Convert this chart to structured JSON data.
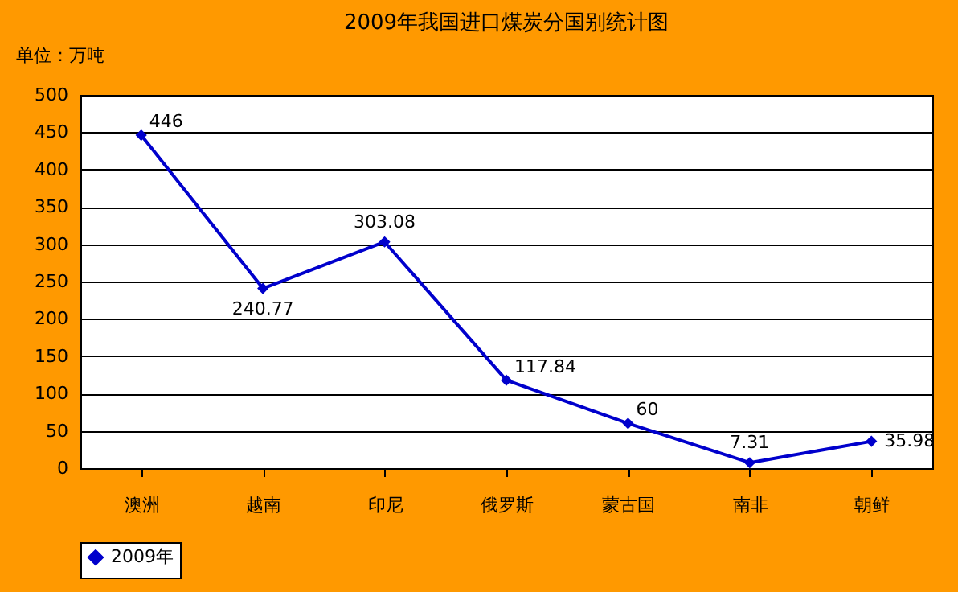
{
  "chart_data": {
    "type": "line",
    "title": "2009年我国进口煤炭分国别统计图",
    "annotations": [
      "单位：万吨"
    ],
    "categories": [
      "澳洲",
      "越南",
      "印尼",
      "俄罗斯",
      "蒙古国",
      "南非",
      "朝鲜"
    ],
    "series": [
      {
        "name": "2009年",
        "color": "#0000cc",
        "values": [
          446,
          240.77,
          303.08,
          117.84,
          60,
          7.31,
          35.98
        ]
      }
    ],
    "ylim": [
      0,
      500
    ],
    "yticks": [
      0,
      50,
      100,
      150,
      200,
      250,
      300,
      350,
      400,
      450,
      500
    ],
    "grid": "y",
    "legend": "bottom",
    "marker": "diamond",
    "line_style": "solid",
    "data_labels": true
  }
}
